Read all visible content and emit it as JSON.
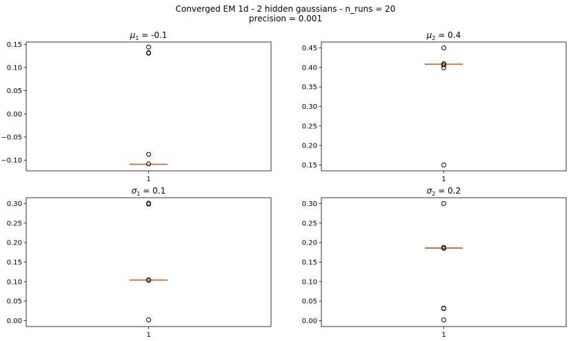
{
  "figure": {
    "title_line1": "Converged EM 1d - 2 hidden gaussians - n_runs = 20",
    "title_line2": "precision = 0.001"
  },
  "colors": {
    "median": "#e07b39",
    "axes": "#000000",
    "flier": "#000000"
  },
  "chart_data": [
    {
      "type": "box",
      "title_symbol": "μ",
      "title_sub": "1",
      "title_value": "= -0.1",
      "category": "1",
      "ylim": [
        -0.123,
        0.155
      ],
      "yticks": [
        -0.1,
        -0.05,
        0.0,
        0.05,
        0.1,
        0.15
      ],
      "ytick_labels": [
        "−0.10",
        "−0.05",
        "0.00",
        "0.05",
        "0.10",
        "0.15"
      ],
      "median": -0.1085,
      "q1": -0.1085,
      "q3": -0.1085,
      "whisker_low": -0.1085,
      "whisker_high": -0.1085,
      "fliers": [
        0.144,
        0.132,
        0.131,
        -0.0875,
        -0.108
      ]
    },
    {
      "type": "box",
      "title_symbol": "μ",
      "title_sub": "2",
      "title_value": "= 0.4",
      "category": "1",
      "ylim": [
        0.135,
        0.465
      ],
      "yticks": [
        0.15,
        0.2,
        0.25,
        0.3,
        0.35,
        0.4,
        0.45
      ],
      "ytick_labels": [
        "0.15",
        "0.20",
        "0.25",
        "0.30",
        "0.35",
        "0.40",
        "0.45"
      ],
      "median": 0.4085,
      "q1": 0.4085,
      "q3": 0.4085,
      "whisker_low": 0.4085,
      "whisker_high": 0.4085,
      "fliers": [
        0.45,
        0.4095,
        0.4065,
        0.399,
        0.15
      ]
    },
    {
      "type": "box",
      "title_symbol": "σ",
      "title_sub": "1",
      "title_value": "= 0.1",
      "category": "1",
      "ylim": [
        -0.015,
        0.315
      ],
      "yticks": [
        0.0,
        0.05,
        0.1,
        0.15,
        0.2,
        0.25,
        0.3
      ],
      "ytick_labels": [
        "0.00",
        "0.05",
        "0.10",
        "0.15",
        "0.20",
        "0.25",
        "0.30"
      ],
      "median": 0.1045,
      "q1": 0.1045,
      "q3": 0.1045,
      "whisker_low": 0.1045,
      "whisker_high": 0.1045,
      "fliers": [
        0.301,
        0.2985,
        0.1045,
        0.1035,
        0.002
      ]
    },
    {
      "type": "box",
      "title_symbol": "σ",
      "title_sub": "2",
      "title_value": "= 0.2",
      "category": "1",
      "ylim": [
        -0.015,
        0.315
      ],
      "yticks": [
        0.0,
        0.05,
        0.1,
        0.15,
        0.2,
        0.25,
        0.3
      ],
      "ytick_labels": [
        "0.00",
        "0.05",
        "0.10",
        "0.15",
        "0.20",
        "0.25",
        "0.30"
      ],
      "median": 0.1865,
      "q1": 0.1865,
      "q3": 0.1865,
      "whisker_low": 0.1865,
      "whisker_high": 0.1865,
      "fliers": [
        0.3,
        0.1875,
        0.1855,
        0.032,
        0.031,
        0.002
      ]
    }
  ]
}
